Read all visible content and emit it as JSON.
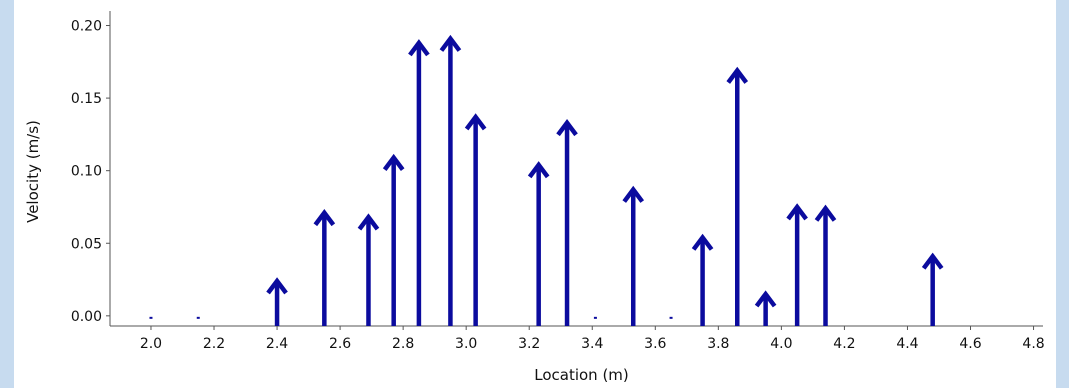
{
  "chart_data": {
    "type": "quiver",
    "xlabel": "Location (m)",
    "ylabel": "Velocity (m/s)",
    "xlim": [
      1.87,
      4.83
    ],
    "ylim": [
      -0.007,
      0.21
    ],
    "xticks": [
      2.0,
      2.2,
      2.4,
      2.6,
      2.8,
      3.0,
      3.2,
      3.4,
      3.6,
      3.8,
      4.0,
      4.2,
      4.4,
      4.6,
      4.8
    ],
    "xtick_labels": [
      "2.0",
      "2.2",
      "2.4",
      "2.6",
      "2.8",
      "3.0",
      "3.2",
      "3.4",
      "3.6",
      "3.8",
      "4.0",
      "4.2",
      "4.4",
      "4.6",
      "4.8"
    ],
    "yticks": [
      0.0,
      0.05,
      0.1,
      0.15,
      0.2
    ],
    "ytick_labels": [
      "0.00",
      "0.05",
      "0.10",
      "0.15",
      "0.20"
    ],
    "grid": true,
    "color": "#0b0b9e",
    "points": [
      {
        "x": 2.0,
        "y": 0.0
      },
      {
        "x": 2.15,
        "y": 0.0
      },
      {
        "x": 2.4,
        "y": 0.024
      },
      {
        "x": 2.55,
        "y": 0.071
      },
      {
        "x": 2.69,
        "y": 0.068
      },
      {
        "x": 2.77,
        "y": 0.109
      },
      {
        "x": 2.85,
        "y": 0.188
      },
      {
        "x": 2.95,
        "y": 0.191
      },
      {
        "x": 3.03,
        "y": 0.137
      },
      {
        "x": 3.23,
        "y": 0.104
      },
      {
        "x": 3.32,
        "y": 0.133
      },
      {
        "x": 3.41,
        "y": 0.0
      },
      {
        "x": 3.53,
        "y": 0.087
      },
      {
        "x": 3.65,
        "y": 0.0
      },
      {
        "x": 3.75,
        "y": 0.054
      },
      {
        "x": 3.86,
        "y": 0.169
      },
      {
        "x": 3.95,
        "y": 0.015
      },
      {
        "x": 4.05,
        "y": 0.075
      },
      {
        "x": 4.14,
        "y": 0.074
      },
      {
        "x": 4.48,
        "y": 0.041
      }
    ]
  }
}
